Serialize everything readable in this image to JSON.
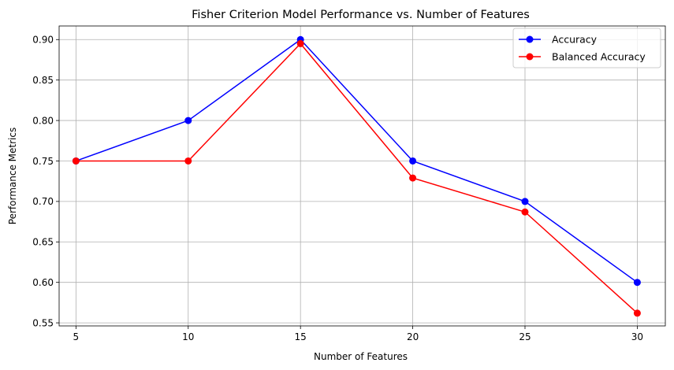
{
  "chart_data": {
    "type": "line",
    "title": "Fisher Criterion Model Performance vs. Number of Features",
    "xlabel": "Number of Features",
    "ylabel": "Performance Metrics",
    "x": [
      5,
      10,
      15,
      20,
      25,
      30
    ],
    "xticks": [
      "5",
      "10",
      "15",
      "20",
      "25",
      "30"
    ],
    "yticks": [
      "0.55",
      "0.60",
      "0.65",
      "0.70",
      "0.75",
      "0.80",
      "0.85",
      "0.90"
    ],
    "xlim": [
      4.25,
      31.25
    ],
    "ylim": [
      0.5462,
      0.9168
    ],
    "grid": true,
    "legend_position": "top-right",
    "series": [
      {
        "name": "Accuracy",
        "color": "#0000ff",
        "marker": "circle",
        "values": [
          0.75,
          0.8,
          0.9,
          0.75,
          0.7,
          0.6
        ]
      },
      {
        "name": "Balanced Accuracy",
        "color": "#ff0000",
        "marker": "circle",
        "values": [
          0.75,
          0.75,
          0.895,
          0.729,
          0.687,
          0.562
        ]
      }
    ]
  }
}
